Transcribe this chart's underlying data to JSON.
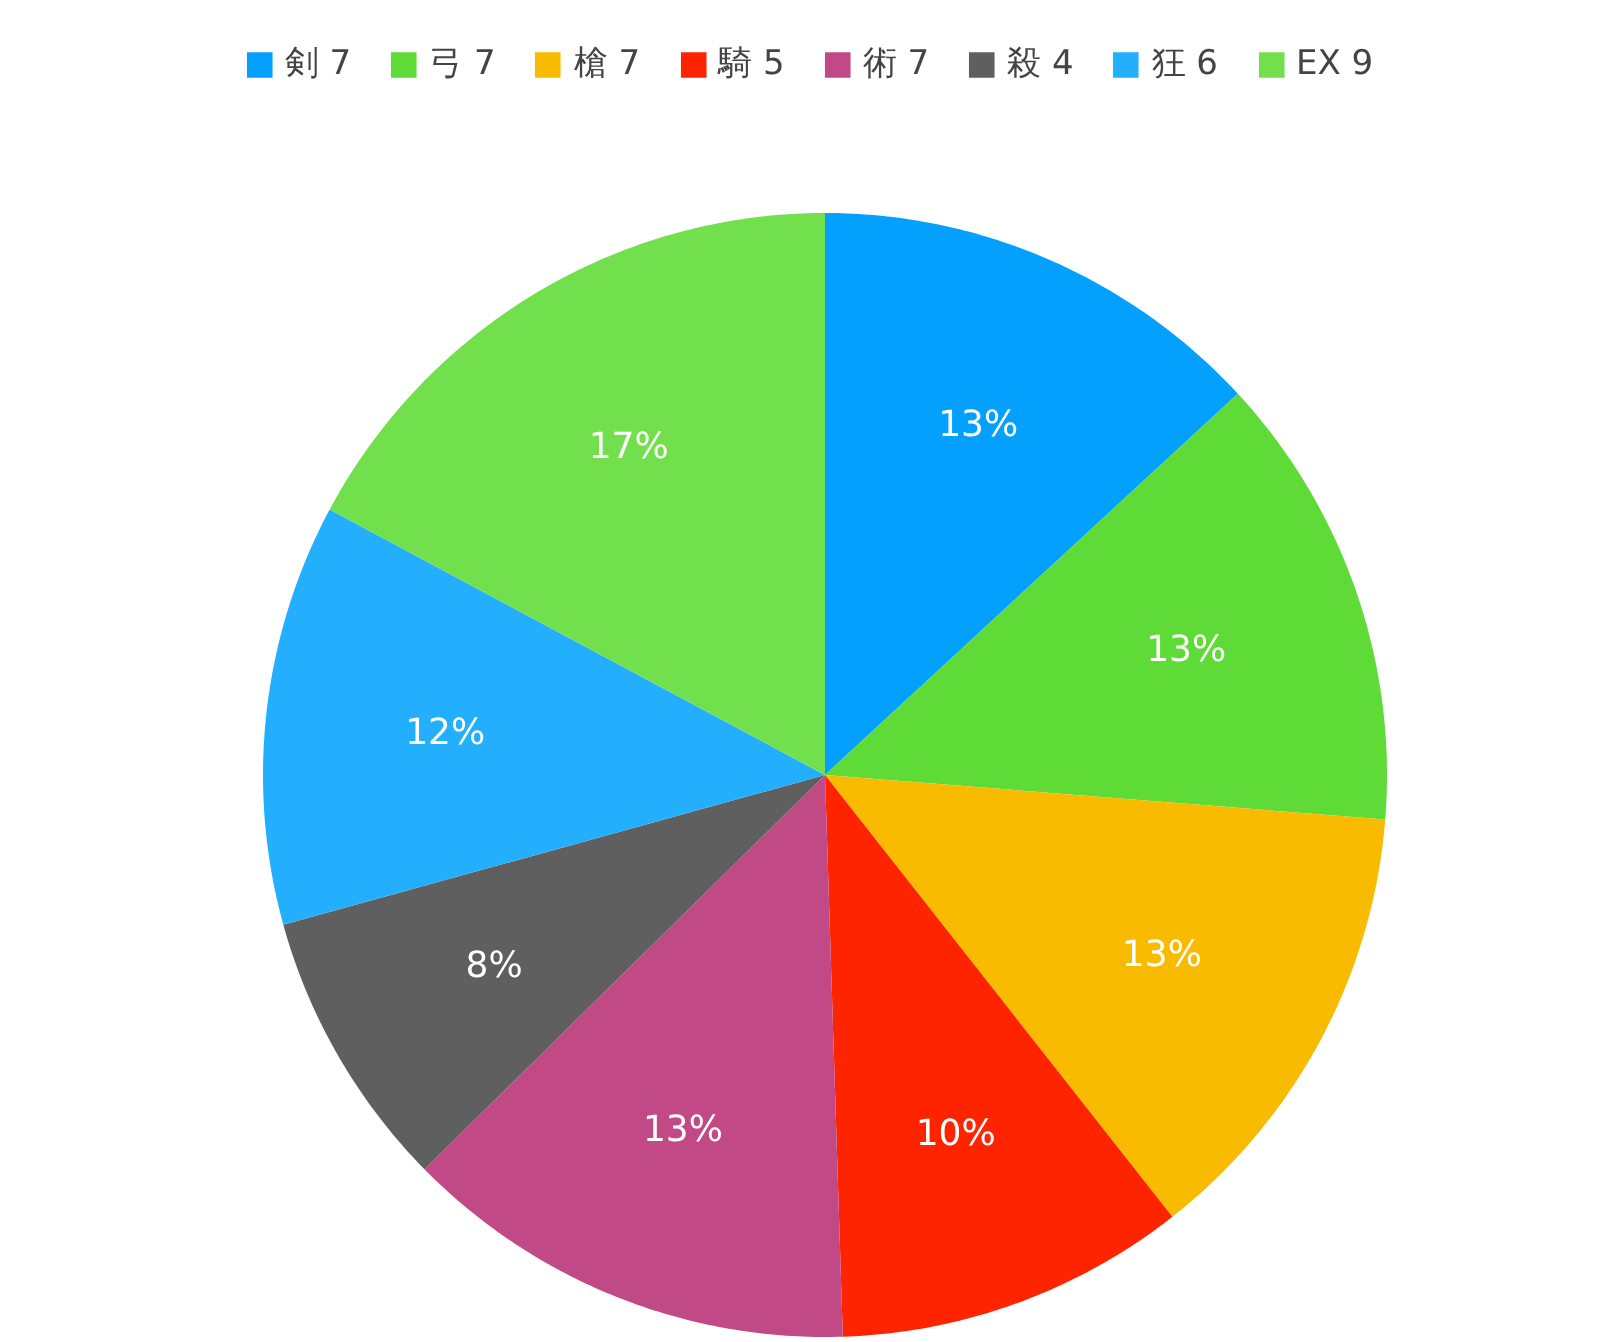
{
  "chart_data": {
    "type": "pie",
    "categories": [
      "剣 7",
      "弓 7",
      "槍 7",
      "騎 5",
      "術 7",
      "殺 4",
      "狂 6",
      "EX 9"
    ],
    "values": [
      13,
      13,
      13,
      10,
      13,
      8,
      12,
      17
    ],
    "colors": [
      "#04a0fe",
      "#5edb36",
      "#f8bb00",
      "#ff2400",
      "#c14a86",
      "#5f5f5f",
      "#23aefe",
      "#72e04c"
    ],
    "value_labels": [
      "13%",
      "13%",
      "13%",
      "10%",
      "13%",
      "8%",
      "12%",
      "17%"
    ],
    "legend": "top"
  }
}
